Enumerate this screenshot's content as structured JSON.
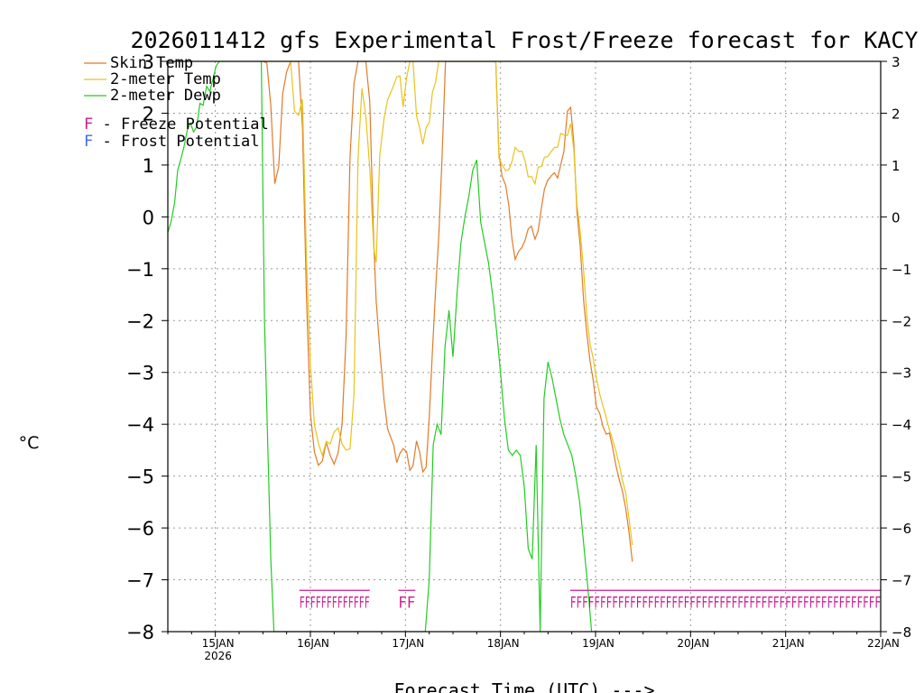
{
  "chart_data": {
    "type": "line",
    "title": "2026011412 gfs Experimental Frost/Freeze forecast for KACY",
    "xlabel": "Forecast Time (UTC) --->",
    "ylabel": "°C",
    "xlim": [
      0,
      180
    ],
    "ylim": [
      -8,
      3
    ],
    "x_unit": "hours from 14JAN2026 12Z",
    "grid": true,
    "y_ticks": [
      "3",
      "2",
      "1",
      "0",
      "−1",
      "−2",
      "−3",
      "−4",
      "−5",
      "−6",
      "−7",
      "−8"
    ],
    "x_ticks": [
      {
        "x": 12,
        "label": "15JAN",
        "sublabel": "2026"
      },
      {
        "x": 36,
        "label": "16JAN",
        "sublabel": ""
      },
      {
        "x": 60,
        "label": "17JAN",
        "sublabel": ""
      },
      {
        "x": 84,
        "label": "18JAN",
        "sublabel": ""
      },
      {
        "x": 108,
        "label": "19JAN",
        "sublabel": ""
      },
      {
        "x": 132,
        "label": "20JAN",
        "sublabel": ""
      },
      {
        "x": 156,
        "label": "21JAN",
        "sublabel": ""
      },
      {
        "x": 180,
        "label": "22JAN",
        "sublabel": ""
      }
    ],
    "legend": {
      "placement": "top-left",
      "items": [
        {
          "label": "Skin Temp",
          "color": "#e07b28"
        },
        {
          "label": "2-meter Temp",
          "color": "#e8c41a"
        },
        {
          "label": "2-meter Dewp",
          "color": "#22cc22"
        }
      ],
      "flag_items": [
        {
          "letter": "F",
          "text": " - Freeze Potential",
          "color": "#cc1a8c"
        },
        {
          "letter": "F",
          "text": " - Frost Potential",
          "color": "#4466ee"
        }
      ]
    },
    "series": [
      {
        "name": "Skin Temp",
        "color": "#e07b28",
        "x": [
          24,
          25,
          26,
          27,
          28,
          29,
          30,
          31,
          32,
          33,
          34,
          35,
          36,
          37,
          38,
          39,
          40,
          41,
          42,
          43,
          44,
          45,
          46,
          47,
          48,
          49,
          50,
          51,
          52,
          52.6,
          53.5,
          54.6,
          55.5,
          57,
          57.8,
          58.6,
          59.4,
          60.3,
          61.1,
          61.9,
          62.8,
          63.6,
          64.4,
          65.2,
          66,
          66.8,
          67.6,
          68.4,
          69.2,
          70.1,
          73,
          82.8,
          83.6,
          84.4,
          85.3,
          86.1,
          86.9,
          87.7,
          88.6,
          89.4,
          90.2,
          91,
          91.8,
          92.7,
          93.5,
          94.3,
          95.1,
          95.9,
          96.8,
          97.6,
          98.4,
          99.2,
          100,
          100.9,
          101.7,
          102.5,
          103.3,
          104.1,
          105,
          105.8,
          106.6,
          107.4,
          108.2,
          109.1,
          109.9,
          110.7,
          111.5,
          112.3,
          113.2,
          114,
          114.8,
          115.6,
          116.4,
          117.3
        ],
        "y": [
          3.0,
          2.97,
          2.15,
          0.64,
          0.97,
          2.38,
          2.8,
          3.0,
          3.0,
          3.0,
          1.73,
          -1.53,
          -3.8,
          -4.53,
          -4.79,
          -4.71,
          -4.35,
          -4.6,
          -4.77,
          -4.55,
          -4.0,
          -2.33,
          1.15,
          2.57,
          3.0,
          3.0,
          3.0,
          2.22,
          -0.5,
          -1.62,
          -2.54,
          -3.53,
          -4.09,
          -4.4,
          -4.74,
          -4.56,
          -4.47,
          -4.53,
          -4.89,
          -4.8,
          -4.32,
          -4.54,
          -4.92,
          -4.83,
          -3.87,
          -2.6,
          -1.41,
          -0.4,
          1.06,
          3.0,
          3.0,
          3.0,
          1.23,
          0.78,
          0.61,
          0.22,
          -0.43,
          -0.82,
          -0.66,
          -0.59,
          -0.45,
          -0.23,
          -0.18,
          -0.43,
          -0.27,
          0.16,
          0.54,
          0.7,
          0.79,
          0.85,
          0.75,
          1.0,
          1.26,
          2.04,
          2.11,
          1.44,
          0.1,
          -0.54,
          -1.62,
          -2.24,
          -2.78,
          -3.15,
          -3.66,
          -3.8,
          -4.05,
          -4.19,
          -4.17,
          -4.45,
          -4.81,
          -5.07,
          -5.29,
          -5.62,
          -6.06,
          -6.65
        ]
      },
      {
        "name": "2-meter Temp",
        "color": "#e8c41a",
        "x": [
          24,
          25,
          26,
          27,
          28,
          29,
          30,
          31,
          32,
          33,
          34,
          35,
          36,
          37,
          38,
          39,
          40,
          41,
          42,
          43,
          44,
          45,
          46,
          47,
          48,
          49,
          50,
          51,
          52,
          52.6,
          53.5,
          54.6,
          55.5,
          57,
          57.8,
          58.6,
          59.4,
          60.3,
          61.1,
          61.9,
          62.8,
          63.6,
          64.4,
          65.2,
          66,
          66.8,
          67.6,
          68.4,
          69.2,
          70.1,
          73,
          82.8,
          83.6,
          84.4,
          85.3,
          86.1,
          86.9,
          87.7,
          88.6,
          89.4,
          90.2,
          91,
          91.8,
          92.7,
          93.5,
          94.3,
          95.1,
          95.9,
          96.8,
          97.6,
          98.4,
          99.2,
          100,
          100.9,
          101.7,
          102.5,
          103.3,
          104.1,
          105,
          105.8,
          106.6,
          107.4,
          108.2,
          109.1,
          109.9,
          110.7,
          111.5,
          112.3,
          113.2,
          114,
          114.8,
          115.6,
          116.4,
          117.3
        ],
        "y": [
          3.0,
          3.0,
          3.0,
          3.0,
          3.0,
          3.0,
          3.0,
          3.0,
          2.04,
          1.96,
          2.27,
          -0.79,
          -2.83,
          -4.0,
          -4.37,
          -4.6,
          -4.33,
          -4.38,
          -4.15,
          -4.07,
          -4.38,
          -4.5,
          -4.47,
          -3.43,
          1.1,
          2.48,
          1.95,
          0.93,
          -0.6,
          -0.88,
          1.17,
          1.9,
          2.26,
          2.53,
          2.7,
          2.72,
          2.12,
          2.68,
          3.0,
          3.0,
          1.95,
          1.71,
          1.4,
          1.72,
          1.82,
          2.4,
          2.6,
          3.0,
          3.0,
          3.0,
          3.0,
          3.0,
          1.14,
          1.0,
          0.89,
          0.91,
          1.07,
          1.34,
          1.26,
          1.27,
          1.08,
          0.77,
          0.78,
          0.64,
          0.96,
          0.97,
          1.15,
          1.16,
          1.26,
          1.34,
          1.34,
          1.61,
          1.58,
          1.57,
          1.8,
          1.3,
          0.23,
          -0.26,
          -1.04,
          -1.9,
          -2.45,
          -2.73,
          -3.11,
          -3.43,
          -3.65,
          -3.87,
          -4.11,
          -4.3,
          -4.53,
          -4.78,
          -5.08,
          -5.32,
          -5.8,
          -6.33
        ]
      },
      {
        "name": "2-meter Dewp",
        "color": "#22cc22",
        "x": [
          0,
          0.8,
          1.7,
          2.5,
          3.3,
          4.1,
          4.9,
          5.7,
          6.5,
          7.3,
          8.1,
          8.9,
          9.8,
          10.6,
          11.4,
          12.2,
          13,
          13.8,
          14.6,
          15.4,
          16.2,
          17.1,
          17.9,
          18.7,
          19.5,
          20.3,
          21.1,
          21.9,
          22.7,
          23.6,
          24.4,
          25.2,
          26,
          26.8,
          27.6,
          65,
          66,
          67,
          68,
          69,
          70,
          71,
          72,
          73,
          74,
          75,
          76,
          77,
          78,
          79,
          80,
          81,
          82,
          83,
          84,
          85,
          86,
          87,
          88,
          89,
          90,
          91,
          92,
          93,
          94,
          95,
          96,
          97,
          98,
          99,
          100,
          101,
          102,
          103,
          104,
          105,
          106,
          107,
          108,
          109,
          110,
          111,
          112,
          113,
          114,
          115,
          116,
          117,
          118,
          119,
          120,
          121,
          122
        ],
        "y": [
          -0.3,
          -0.1,
          0.27,
          0.91,
          1.12,
          1.36,
          1.67,
          1.81,
          1.64,
          1.74,
          2.19,
          2.15,
          2.52,
          2.42,
          2.66,
          2.91,
          3.0,
          3.0,
          3.0,
          3.0,
          3.0,
          3.0,
          3.0,
          3.0,
          3.0,
          3.0,
          3.0,
          3.0,
          3.0,
          3.0,
          -2.0,
          -4.3,
          -6.6,
          -8.0,
          -8.0,
          -8.0,
          -7.0,
          -4.4,
          -4.0,
          -4.2,
          -2.5,
          -1.8,
          -2.7,
          -1.5,
          -0.5,
          0.0,
          0.4,
          0.9,
          1.1,
          -0.1,
          -0.5,
          -0.9,
          -1.5,
          -2.2,
          -3.0,
          -3.9,
          -4.5,
          -4.6,
          -4.5,
          -4.6,
          -5.2,
          -6.4,
          -6.6,
          -4.4,
          -8.0,
          -3.5,
          -2.8,
          -3.1,
          -3.5,
          -3.9,
          -4.2,
          -4.4,
          -4.6,
          -5.0,
          -5.5,
          -6.3,
          -7.1,
          -8.0,
          -8.0,
          -8.0,
          -8.0,
          -8.0,
          -8.0,
          -8.0,
          -8.0,
          -8.0,
          -8.0,
          -8.0,
          -8.0,
          -8.0,
          -8.0,
          -8.0,
          -8.0
        ]
      }
    ],
    "freeze_flags": [
      {
        "x_start": 33.2,
        "x_end": 51,
        "text": "FFFFFFFFFFFFF"
      },
      {
        "x_start": 58.2,
        "x_end": 62.5,
        "text": "FF"
      },
      {
        "x_start": 101.6,
        "x_end": 180,
        "text": "FFFFFFFFFFFFFFFFFFFFFFFFFFFFFFFFFFFFFFFFFFFFFFFFFFFF"
      }
    ]
  }
}
